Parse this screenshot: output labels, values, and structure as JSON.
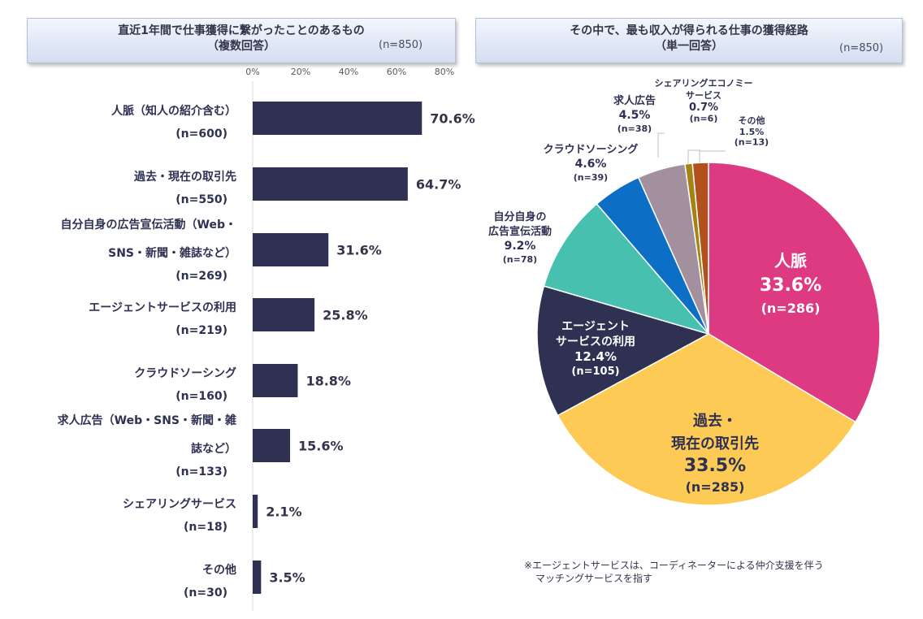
{
  "left_panel": {
    "title_line1": "直近1年間で仕事獲得に繋がったことのあるもの",
    "title_line2": "（複数回答）",
    "n_label": "(n=850)"
  },
  "right_panel": {
    "title_line1": "その中で、最も収入が得られる仕事の獲得経路",
    "title_line2": "（単一回答）",
    "n_label": "(n=850)"
  },
  "footnote": {
    "line1": "※エージェントサービスは、コーディネーターによる仲介支援を伴う",
    "line2": "マッチングサービスを指す"
  },
  "chart_data": [
    {
      "type": "bar",
      "orientation": "horizontal",
      "xlim": [
        0,
        80
      ],
      "xticks": [
        "0%",
        "20%",
        "40%",
        "60%",
        "80%"
      ],
      "bar_color": "#2e3152",
      "categories": [
        {
          "label_lines": [
            "人脈（知人の紹介含む）"
          ],
          "n": "(n=600)",
          "value": 70.6,
          "value_label": "70.6%"
        },
        {
          "label_lines": [
            "過去・現在の取引先"
          ],
          "n": "(n=550)",
          "value": 64.7,
          "value_label": "64.7%"
        },
        {
          "label_lines": [
            "自分自身の広告宣伝活動（Web・",
            "SNS・新聞・雑誌など）"
          ],
          "n": "(n=269)",
          "value": 31.6,
          "value_label": "31.6%"
        },
        {
          "label_lines": [
            "エージェントサービスの利用"
          ],
          "n": "(n=219)",
          "value": 25.8,
          "value_label": "25.8%"
        },
        {
          "label_lines": [
            "クラウドソーシング"
          ],
          "n": "(n=160)",
          "value": 18.8,
          "value_label": "18.8%"
        },
        {
          "label_lines": [
            "求人広告（Web・SNS・新聞・雑",
            "誌など）"
          ],
          "n": "(n=133)",
          "value": 15.6,
          "value_label": "15.6%"
        },
        {
          "label_lines": [
            "シェアリングサービス"
          ],
          "n": "(n=18)",
          "value": 2.1,
          "value_label": "2.1%"
        },
        {
          "label_lines": [
            "その他"
          ],
          "n": "(n=30)",
          "value": 3.5,
          "value_label": "3.5%"
        }
      ]
    },
    {
      "type": "pie",
      "slices": [
        {
          "label_lines": [
            "人脈"
          ],
          "value": 33.6,
          "pct": "33.6%",
          "n": "(n=286)",
          "color": "#de3a82"
        },
        {
          "label_lines": [
            "過去・",
            "現在の取引先"
          ],
          "value": 33.5,
          "pct": "33.5%",
          "n": "(n=285)",
          "color": "#fdcb55"
        },
        {
          "label_lines": [
            "エージェント",
            "サービスの利用"
          ],
          "value": 12.4,
          "pct": "12.4%",
          "n": "(n=105)",
          "color": "#2e3152"
        },
        {
          "label_lines": [
            "自分自身の",
            "広告宣伝活動"
          ],
          "value": 9.2,
          "pct": "9.2%",
          "n": "(n=78)",
          "color": "#48c0b0"
        },
        {
          "label_lines": [
            "クラウドソーシング"
          ],
          "value": 4.6,
          "pct": "4.6%",
          "n": "(n=39)",
          "color": "#0c6ec5"
        },
        {
          "label_lines": [
            "求人広告"
          ],
          "value": 4.5,
          "pct": "4.5%",
          "n": "(n=38)",
          "color": "#a2909e"
        },
        {
          "label_lines": [
            "シェアリングエコノミー",
            "サービス"
          ],
          "value": 0.7,
          "pct": "0.7%",
          "n": "(n=6)",
          "color": "#a68214"
        },
        {
          "label_lines": [
            "その他"
          ],
          "value": 1.5,
          "pct": "1.5%",
          "n": "(n=13)",
          "color": "#b2501e"
        }
      ]
    }
  ]
}
